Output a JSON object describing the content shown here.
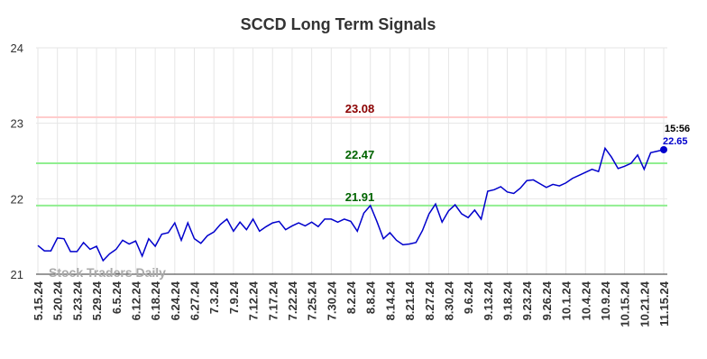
{
  "chart_data": {
    "type": "line",
    "title": "SCCD Long Term Signals",
    "watermark": "Stock Traders Daily",
    "categories": [
      "5.15.24",
      null,
      null,
      "5.20.24",
      null,
      null,
      "5.23.24",
      null,
      null,
      "5.29.24",
      null,
      null,
      "6.5.24",
      null,
      null,
      "6.12.24",
      null,
      null,
      "6.18.24",
      null,
      null,
      "6.24.24",
      null,
      null,
      "6.27.24",
      null,
      null,
      "7.3.24",
      null,
      null,
      "7.9.24",
      null,
      null,
      "7.12.24",
      null,
      null,
      "7.17.24",
      null,
      null,
      "7.22.24",
      null,
      null,
      "7.25.24",
      null,
      null,
      "7.30.24",
      null,
      null,
      "8.2.24",
      null,
      null,
      "8.8.24",
      null,
      null,
      "8.14.24",
      null,
      null,
      "8.21.24",
      null,
      null,
      "8.27.24",
      null,
      null,
      "8.30.24",
      null,
      null,
      "9.6.24",
      null,
      null,
      "9.13.24",
      null,
      null,
      "9.18.24",
      null,
      null,
      "9.23.24",
      null,
      null,
      "9.26.24",
      null,
      null,
      "10.1.24",
      null,
      null,
      "10.4.24",
      null,
      null,
      "10.9.24",
      null,
      null,
      "10.15.24",
      null,
      null,
      "10.21.24",
      null,
      null,
      "11.15.24"
    ],
    "values": [
      21.38,
      21.31,
      21.31,
      21.48,
      21.47,
      21.3,
      21.3,
      21.42,
      21.33,
      21.37,
      21.18,
      21.27,
      21.33,
      21.45,
      21.4,
      21.44,
      21.24,
      21.47,
      21.37,
      21.53,
      21.55,
      21.68,
      21.45,
      21.68,
      21.47,
      21.41,
      21.51,
      21.56,
      21.66,
      21.73,
      21.57,
      21.69,
      21.59,
      21.73,
      21.57,
      21.63,
      21.68,
      21.7,
      21.59,
      21.64,
      21.68,
      21.64,
      21.69,
      21.63,
      21.73,
      21.73,
      21.69,
      21.73,
      21.7,
      21.57,
      21.81,
      21.91,
      21.7,
      21.47,
      21.55,
      21.45,
      21.39,
      21.4,
      21.42,
      21.58,
      21.8,
      21.93,
      21.69,
      21.84,
      21.92,
      21.8,
      21.75,
      21.85,
      21.73,
      22.1,
      22.12,
      22.16,
      22.09,
      22.07,
      22.14,
      22.24,
      22.25,
      22.2,
      22.15,
      22.19,
      22.17,
      22.21,
      22.27,
      22.31,
      22.35,
      22.39,
      22.36,
      22.67,
      22.55,
      22.4,
      22.43,
      22.47,
      22.58,
      22.39,
      22.61,
      22.63,
      22.65
    ],
    "color": "#0000cc",
    "last_time": "15:56",
    "reference_lines": [
      {
        "value": 23.08,
        "color": "#ffcccc",
        "label_color": "#8b0000"
      },
      {
        "value": 22.47,
        "color": "#90ee90",
        "label_color": "#006400"
      },
      {
        "value": 21.91,
        "color": "#90ee90",
        "label_color": "#006400"
      }
    ],
    "ylim": [
      21,
      24
    ],
    "yticks": [
      21,
      22,
      23,
      24
    ],
    "grid": true
  }
}
